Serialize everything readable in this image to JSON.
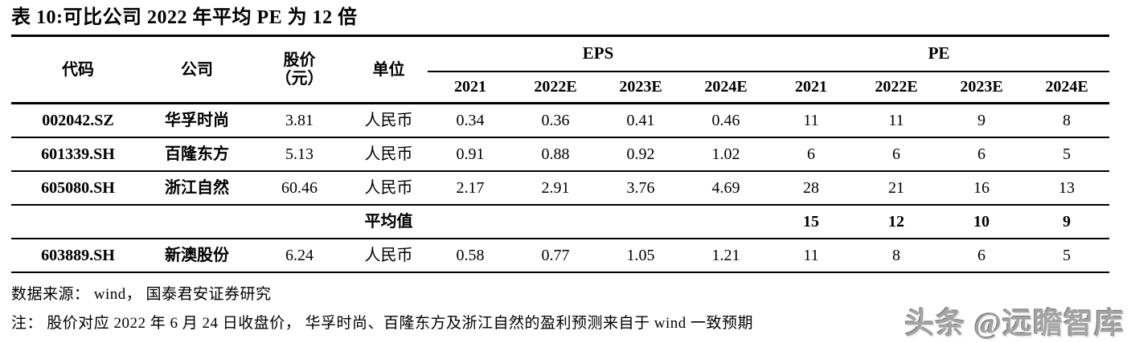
{
  "page": {
    "title": "表 10:可比公司 2022 年平均 PE 为 12 倍",
    "source": "数据来源： wind， 国泰君安证券研究",
    "note": "注： 股价对应 2022 年 6 月 24 日收盘价， 华孚时尚、百隆东方及浙江自然的盈利预测来自于 wind 一致预期",
    "watermark": "头条 @远瞻智库"
  },
  "table": {
    "headers": {
      "code": "代码",
      "company": "公司",
      "price_line1": "股价",
      "price_line2": "（元）",
      "unit": "单位",
      "eps_group": "EPS",
      "pe_group": "PE",
      "years": [
        "2021",
        "2022E",
        "2023E",
        "2024E"
      ]
    },
    "rows": [
      {
        "code": "002042.SZ",
        "company": "华孚时尚",
        "price": "3.81",
        "unit": "人民币",
        "is_average": false,
        "eps": [
          "0.34",
          "0.36",
          "0.41",
          "0.46"
        ],
        "pe": [
          "11",
          "11",
          "9",
          "8"
        ]
      },
      {
        "code": "601339.SH",
        "company": "百隆东方",
        "price": "5.13",
        "unit": "人民币",
        "is_average": false,
        "eps": [
          "0.91",
          "0.88",
          "0.92",
          "1.02"
        ],
        "pe": [
          "6",
          "6",
          "6",
          "5"
        ]
      },
      {
        "code": "605080.SH",
        "company": "浙江自然",
        "price": "60.46",
        "unit": "人民币",
        "is_average": false,
        "eps": [
          "2.17",
          "2.91",
          "3.76",
          "4.69"
        ],
        "pe": [
          "28",
          "21",
          "16",
          "13"
        ]
      },
      {
        "code": "",
        "company": "",
        "price": "",
        "unit": "平均值",
        "is_average": true,
        "eps": [
          "",
          "",
          "",
          ""
        ],
        "pe": [
          "15",
          "12",
          "10",
          "9"
        ]
      },
      {
        "code": "603889.SH",
        "company": "新澳股份",
        "price": "6.24",
        "unit": "人民币",
        "is_average": false,
        "eps": [
          "0.58",
          "0.77",
          "1.05",
          "1.21"
        ],
        "pe": [
          "11",
          "8",
          "6",
          "5"
        ]
      }
    ]
  },
  "colors": {
    "text": "#000000",
    "table_lines": "#000000",
    "watermark": "#a3a3a3",
    "background": "#ffffff"
  }
}
